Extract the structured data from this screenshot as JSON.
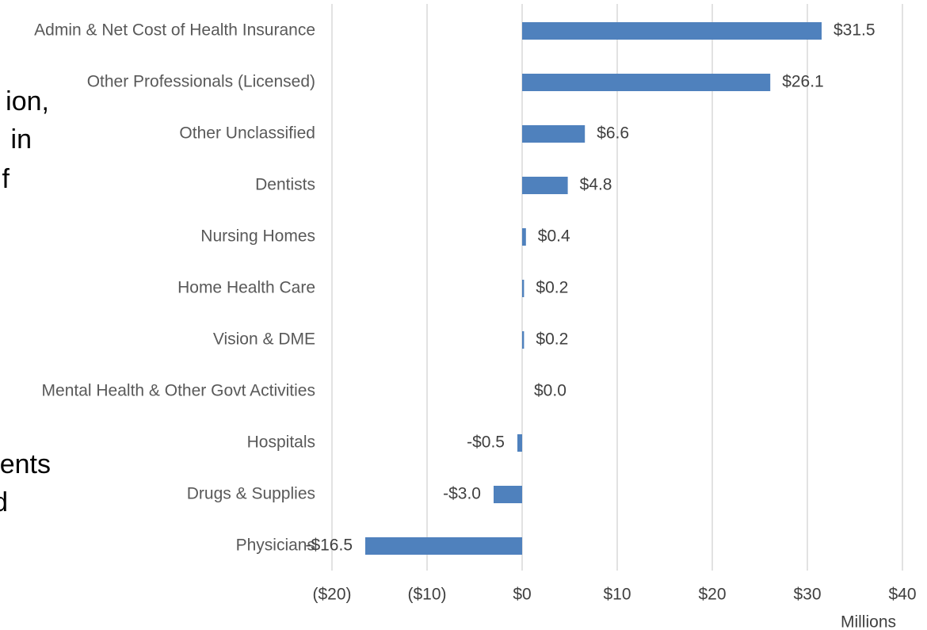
{
  "chart_data": {
    "type": "barh",
    "categories": [
      "Admin & Net Cost of Health Insurance",
      "Other Professionals (Licensed)",
      "Other Unclassified",
      "Dentists",
      "Nursing Homes",
      "Home Health Care",
      "Vision & DME",
      "Mental Health & Other Govt Activities",
      "Hospitals",
      "Drugs & Supplies",
      "Physicians"
    ],
    "values": [
      31.5,
      26.1,
      6.6,
      4.8,
      0.4,
      0.2,
      0.2,
      0.0,
      -0.5,
      -3.0,
      -16.5
    ],
    "value_labels": [
      "$31.5",
      "$26.1",
      "$6.6",
      "$4.8",
      "$0.4",
      "$0.2",
      "$0.2",
      "$0.0",
      "-$0.5",
      "-$3.0",
      "-$16.5"
    ],
    "color": "#4f81bd",
    "xlim": [
      -20,
      40
    ],
    "xticks": [
      {
        "value": -20,
        "label": "($20)"
      },
      {
        "value": -10,
        "label": "($10)"
      },
      {
        "value": 0,
        "label": "$0"
      },
      {
        "value": 10,
        "label": "$10"
      },
      {
        "value": 20,
        "label": "$20"
      },
      {
        "value": 30,
        "label": "$30"
      },
      {
        "value": 40,
        "label": "$40"
      }
    ],
    "negative_tick_color": "#ff0000",
    "xlabel": "Millions",
    "grid": true,
    "annotations": [
      "ion,",
      "in",
      "f",
      "ents",
      "d"
    ]
  }
}
